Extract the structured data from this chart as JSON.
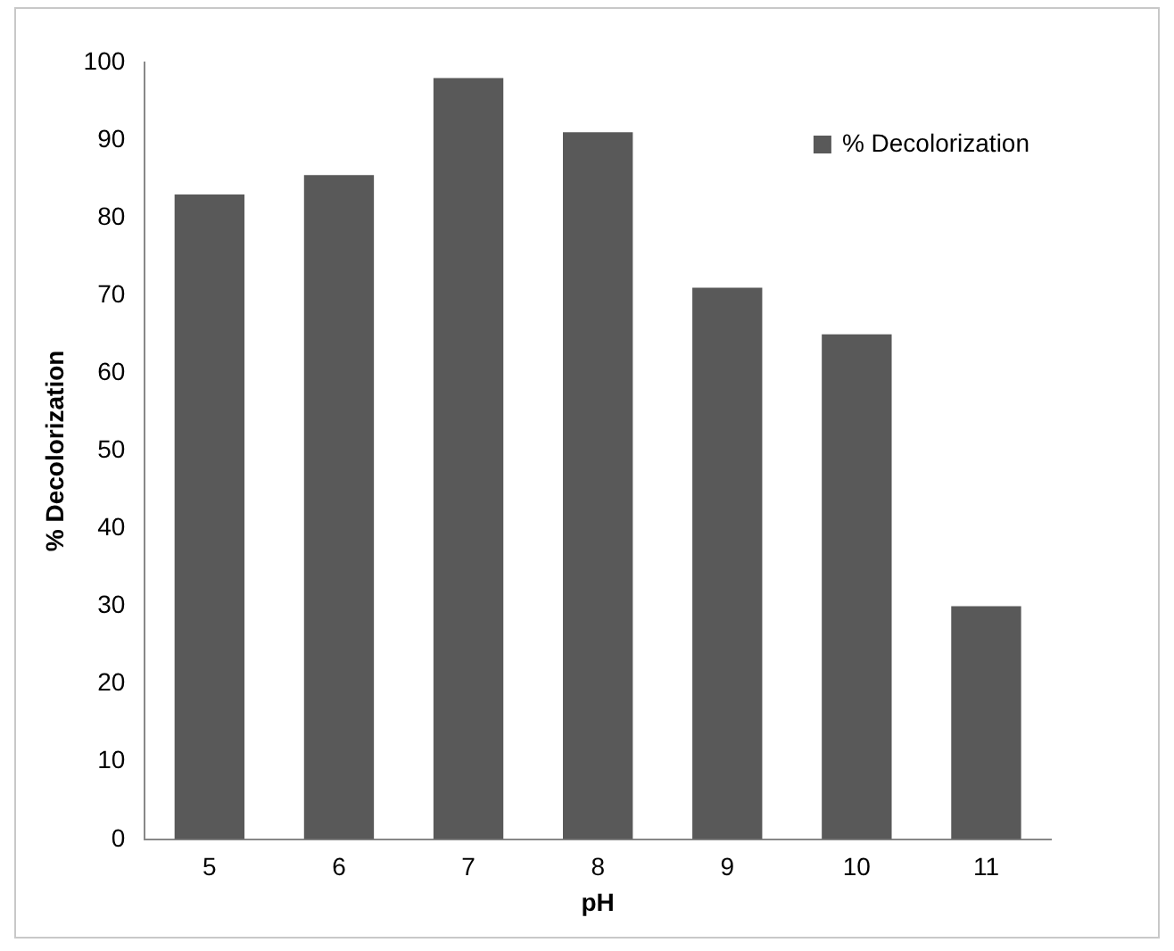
{
  "chart_data": {
    "type": "bar",
    "xlabel": "pH",
    "ylabel": "% Decolorization",
    "categories": [
      "5",
      "6",
      "7",
      "8",
      "9",
      "10",
      "11"
    ],
    "series": [
      {
        "name": "% Decolorization",
        "color": "#595959",
        "values": [
          83,
          85.5,
          98,
          91,
          71,
          65,
          30
        ]
      }
    ],
    "ylim": [
      0,
      100
    ],
    "yticks": [
      0,
      10,
      20,
      30,
      40,
      50,
      60,
      70,
      80,
      90,
      100
    ],
    "grid": false,
    "legend": "top right"
  }
}
